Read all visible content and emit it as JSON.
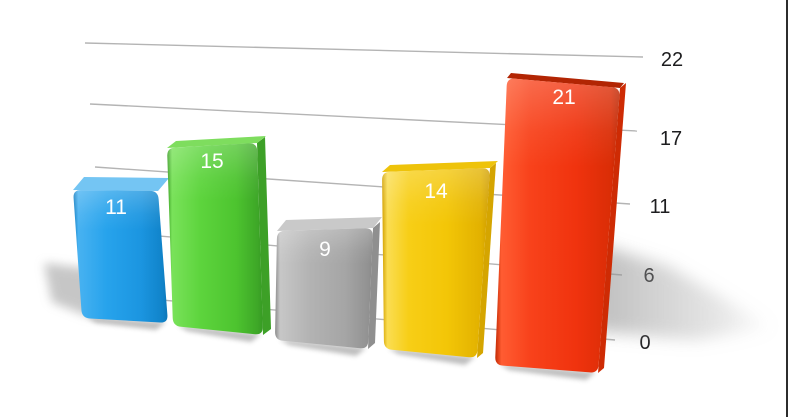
{
  "chart_data": {
    "type": "bar",
    "style": "3d-perspective-glossy",
    "title": "",
    "xlabel": "",
    "ylabel": "",
    "categories": [
      "",
      "",
      "",
      "",
      ""
    ],
    "values": [
      11,
      15,
      9,
      14,
      21
    ],
    "bar_labels": [
      "11",
      "15",
      "9",
      "14",
      "21"
    ],
    "bar_colors": [
      "#1e9ce8",
      "#55cf35",
      "#ababab",
      "#f4c60a",
      "#f2330d"
    ],
    "yticks": [
      "22",
      "17",
      "11",
      "6",
      "0"
    ],
    "ytick_values": [
      22,
      17,
      11,
      6,
      0
    ],
    "ylim": [
      0,
      22
    ],
    "axis_side": "right",
    "grid": true,
    "legend": false,
    "value_labels_inside_bars": true,
    "gridline_color": "#b4b4b4",
    "axis_label_color": "#1d1d1f",
    "bar_label_color": "#ffffff",
    "background_color": "#ffffff",
    "frame_edge_color": "#151515"
  }
}
